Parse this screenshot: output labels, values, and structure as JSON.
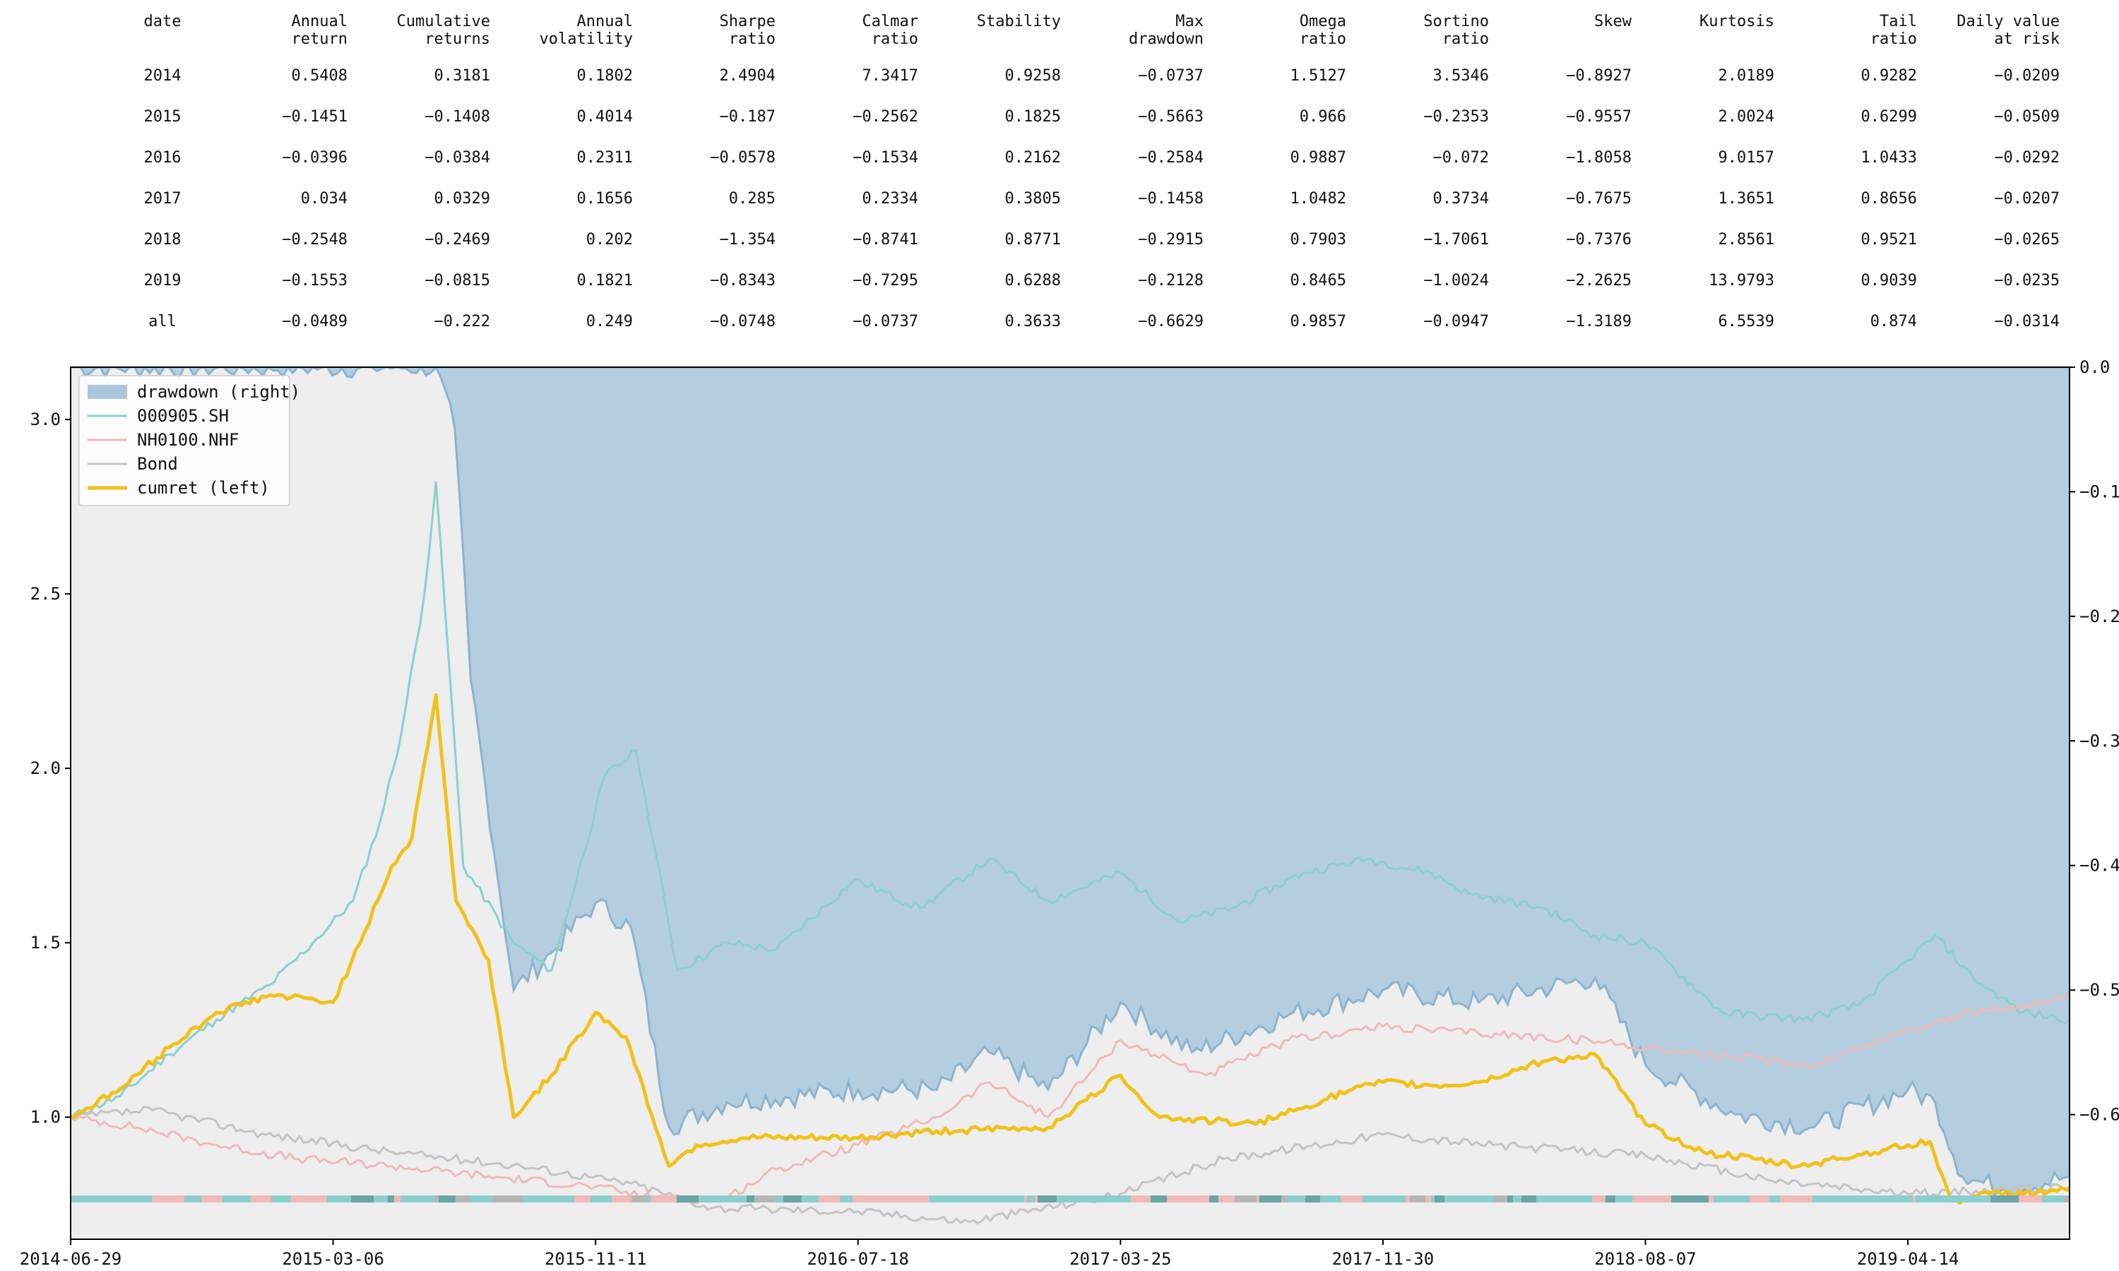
{
  "stats_table": {
    "columns": [
      "date",
      "Annual\nreturn",
      "Cumulative\nreturns",
      "Annual\nvolatility",
      "Sharpe\nratio",
      "Calmar\nratio",
      "Stability",
      "Max\ndrawdown",
      "Omega\nratio",
      "Sortino\nratio",
      "Skew",
      "Kurtosis",
      "Tail\nratio",
      "Daily value\nat risk"
    ],
    "rows": [
      [
        "2014",
        "0.5408",
        "0.3181",
        "0.1802",
        "2.4904",
        "7.3417",
        "0.9258",
        "−0.0737",
        "1.5127",
        "3.5346",
        "−0.8927",
        "2.0189",
        "0.9282",
        "−0.0209"
      ],
      [
        "2015",
        "−0.1451",
        "−0.1408",
        "0.4014",
        "−0.187",
        "−0.2562",
        "0.1825",
        "−0.5663",
        "0.966",
        "−0.2353",
        "−0.9557",
        "2.0024",
        "0.6299",
        "−0.0509"
      ],
      [
        "2016",
        "−0.0396",
        "−0.0384",
        "0.2311",
        "−0.0578",
        "−0.1534",
        "0.2162",
        "−0.2584",
        "0.9887",
        "−0.072",
        "−1.8058",
        "9.0157",
        "1.0433",
        "−0.0292"
      ],
      [
        "2017",
        "0.034",
        "0.0329",
        "0.1656",
        "0.285",
        "0.2334",
        "0.3805",
        "−0.1458",
        "1.0482",
        "0.3734",
        "−0.7675",
        "1.3651",
        "0.8656",
        "−0.0207"
      ],
      [
        "2018",
        "−0.2548",
        "−0.2469",
        "0.202",
        "−1.354",
        "−0.8741",
        "0.8771",
        "−0.2915",
        "0.7903",
        "−1.7061",
        "−0.7376",
        "2.8561",
        "0.9521",
        "−0.0265"
      ],
      [
        "2019",
        "−0.1553",
        "−0.0815",
        "0.1821",
        "−0.8343",
        "−0.7295",
        "0.6288",
        "−0.2128",
        "0.8465",
        "−1.0024",
        "−2.2625",
        "13.9793",
        "0.9039",
        "−0.0235"
      ],
      [
        "all",
        "−0.0489",
        "−0.222",
        "0.249",
        "−0.0748",
        "−0.0737",
        "0.3633",
        "−0.6629",
        "0.9857",
        "−0.0947",
        "−1.3189",
        "6.5539",
        "0.874",
        "−0.0314"
      ]
    ]
  },
  "chart_data": {
    "type": "line",
    "title": "",
    "xlabel": "",
    "ylabel": "",
    "x_ticks": [
      "2014-06-29",
      "2015-03-06",
      "2015-11-11",
      "2016-07-18",
      "2017-03-25",
      "2017-11-30",
      "2018-08-07",
      "2019-04-14"
    ],
    "x_range": [
      "2014-06-29",
      "2019-09-15"
    ],
    "y_left_range": [
      0.65,
      3.15
    ],
    "y_left_ticks": [
      1.0,
      1.5,
      2.0,
      2.5,
      3.0
    ],
    "y_left_tick_labels": [
      "1.0",
      "1.5",
      "2.0",
      "2.5",
      "3.0"
    ],
    "y_right_range": [
      -0.7,
      0.0
    ],
    "y_right_ticks": [
      0.0,
      -0.1,
      -0.2,
      -0.3,
      -0.4,
      -0.5,
      -0.6
    ],
    "y_right_tick_labels": [
      "0.0",
      "−0.1",
      "−0.2",
      "−0.3",
      "−0.4",
      "−0.5",
      "−0.6"
    ],
    "grid": false,
    "legend_position": "top-left",
    "background_color": "#eeeeee",
    "legend": [
      {
        "label": "drawdown (right)",
        "kind": "patch",
        "color": "#a9c7dc"
      },
      {
        "label": "000905.SH",
        "kind": "line",
        "color": "#8ccfcf"
      },
      {
        "label": "NH0100.NHF",
        "kind": "line",
        "color": "#f1b9b9"
      },
      {
        "label": "Bond",
        "kind": "line",
        "color": "#c4c4c4"
      },
      {
        "label": "cumret (left)",
        "kind": "line",
        "color": "#f0c21a"
      }
    ],
    "series": [
      {
        "name": "000905.SH",
        "axis": "left",
        "color": "#8ccfcf",
        "x": [
          "2014-06-29",
          "2014-08-15",
          "2014-10-01",
          "2014-11-15",
          "2015-01-05",
          "2015-02-15",
          "2015-03-25",
          "2015-04-20",
          "2015-05-10",
          "2015-06-01",
          "2015-06-12",
          "2015-07-08",
          "2015-08-25",
          "2015-09-30",
          "2015-11-20",
          "2015-12-20",
          "2016-01-28",
          "2016-03-15",
          "2016-05-01",
          "2016-07-15",
          "2016-09-15",
          "2016-11-20",
          "2017-01-15",
          "2017-03-25",
          "2017-05-20",
          "2017-07-10",
          "2017-09-15",
          "2017-11-15",
          "2018-01-15",
          "2018-02-20",
          "2018-05-01",
          "2018-06-20",
          "2018-08-07",
          "2018-10-19",
          "2019-01-04",
          "2019-02-25",
          "2019-04-14",
          "2019-05-10",
          "2019-06-15",
          "2019-08-01",
          "2019-09-15"
        ],
        "values": [
          1.0,
          1.06,
          1.18,
          1.28,
          1.38,
          1.5,
          1.62,
          1.85,
          2.1,
          2.5,
          2.82,
          1.72,
          1.5,
          1.42,
          1.98,
          2.05,
          1.42,
          1.5,
          1.48,
          1.68,
          1.6,
          1.74,
          1.62,
          1.7,
          1.56,
          1.6,
          1.7,
          1.74,
          1.7,
          1.64,
          1.6,
          1.52,
          1.5,
          1.3,
          1.28,
          1.32,
          1.45,
          1.52,
          1.4,
          1.3,
          1.28
        ]
      },
      {
        "name": "NH0100.NHF",
        "axis": "left",
        "color": "#f1b9b9",
        "x": [
          "2014-06-29",
          "2014-09-01",
          "2014-11-15",
          "2015-02-01",
          "2015-05-01",
          "2015-08-01",
          "2015-11-11",
          "2016-01-20",
          "2016-03-15",
          "2016-05-01",
          "2016-07-18",
          "2016-10-01",
          "2016-11-20",
          "2017-01-15",
          "2017-03-25",
          "2017-06-15",
          "2017-09-01",
          "2017-11-30",
          "2018-03-01",
          "2018-06-15",
          "2018-08-07",
          "2018-11-01",
          "2019-01-15",
          "2019-04-14",
          "2019-06-15",
          "2019-09-15"
        ],
        "values": [
          1.0,
          0.97,
          0.92,
          0.88,
          0.86,
          0.83,
          0.8,
          0.76,
          0.77,
          0.85,
          0.92,
          1.0,
          1.1,
          1.0,
          1.22,
          1.12,
          1.22,
          1.26,
          1.24,
          1.22,
          1.2,
          1.17,
          1.15,
          1.25,
          1.3,
          1.34
        ]
      },
      {
        "name": "Bond",
        "axis": "left",
        "color": "#c4c4c4",
        "x": [
          "2014-06-29",
          "2014-09-15",
          "2015-01-01",
          "2015-05-01",
          "2015-09-01",
          "2015-12-15",
          "2016-03-01",
          "2016-07-18",
          "2016-11-01",
          "2017-03-25",
          "2017-07-01",
          "2017-11-30",
          "2018-03-15",
          "2018-08-07",
          "2018-12-01",
          "2019-04-14",
          "2019-09-15"
        ],
        "values": [
          1.0,
          1.02,
          0.95,
          0.9,
          0.86,
          0.81,
          0.74,
          0.73,
          0.7,
          0.78,
          0.88,
          0.95,
          0.92,
          0.89,
          0.82,
          0.78,
          0.8
        ]
      },
      {
        "name": "cumret (left)",
        "axis": "left",
        "color": "#f0c21a",
        "x": [
          "2014-06-29",
          "2014-08-15",
          "2014-10-01",
          "2014-11-15",
          "2015-01-05",
          "2015-03-06",
          "2015-04-01",
          "2015-05-01",
          "2015-05-20",
          "2015-06-12",
          "2015-07-01",
          "2015-08-01",
          "2015-08-25",
          "2015-09-30",
          "2015-11-11",
          "2015-12-10",
          "2016-01-20",
          "2016-02-15",
          "2016-04-01",
          "2016-07-18",
          "2016-10-01",
          "2017-01-15",
          "2017-03-25",
          "2017-05-01",
          "2017-08-01",
          "2017-11-01",
          "2017-11-30",
          "2018-01-20",
          "2018-03-01",
          "2018-05-01",
          "2018-06-20",
          "2018-08-07",
          "2018-10-01",
          "2019-01-01",
          "2019-04-14",
          "2019-05-05",
          "2019-05-25",
          "2019-07-01",
          "2019-09-15"
        ],
        "values": [
          1.0,
          1.08,
          1.2,
          1.3,
          1.35,
          1.33,
          1.5,
          1.72,
          1.8,
          2.21,
          1.62,
          1.45,
          1.0,
          1.12,
          1.3,
          1.23,
          0.86,
          0.92,
          0.94,
          0.94,
          0.96,
          0.97,
          1.12,
          1.0,
          0.98,
          1.08,
          1.1,
          1.09,
          1.1,
          1.16,
          1.18,
          0.98,
          0.9,
          0.86,
          0.92,
          0.93,
          0.76,
          0.78,
          0.79
        ]
      }
    ],
    "drawdown": {
      "axis": "right",
      "color": "#a9c7dc",
      "edge_color": "#8ab4d0",
      "x": [
        "2014-06-29",
        "2015-06-12",
        "2015-06-30",
        "2015-07-15",
        "2015-08-25",
        "2015-09-30",
        "2015-11-11",
        "2015-12-15",
        "2016-01-20",
        "2016-03-15",
        "2016-07-18",
        "2016-10-01",
        "2016-11-20",
        "2017-01-15",
        "2017-03-25",
        "2017-06-01",
        "2017-09-01",
        "2017-11-30",
        "2018-03-01",
        "2018-06-20",
        "2018-08-07",
        "2018-11-01",
        "2019-01-15",
        "2019-04-14",
        "2019-05-10",
        "2019-06-05",
        "2019-07-15",
        "2019-09-15"
      ],
      "values": [
        0.0,
        0.0,
        -0.05,
        -0.25,
        -0.5,
        -0.47,
        -0.43,
        -0.45,
        -0.61,
        -0.59,
        -0.58,
        -0.58,
        -0.55,
        -0.58,
        -0.51,
        -0.55,
        -0.52,
        -0.5,
        -0.51,
        -0.49,
        -0.56,
        -0.6,
        -0.61,
        -0.58,
        -0.59,
        -0.65,
        -0.66,
        -0.65
      ]
    },
    "regime_strip": {
      "colors": [
        "#8ccfcf",
        "#f1b9b9",
        "#6aa6a6",
        "#b7b7b7"
      ]
    }
  }
}
